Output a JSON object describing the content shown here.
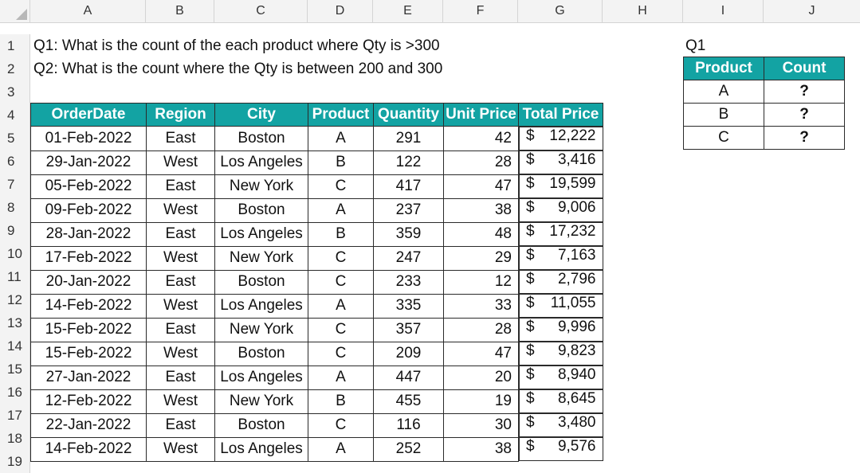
{
  "columns": [
    "A",
    "B",
    "C",
    "D",
    "E",
    "F",
    "G",
    "H",
    "I",
    "J"
  ],
  "row_numbers": [
    "1",
    "2",
    "3",
    "4",
    "5",
    "6",
    "7",
    "8",
    "9",
    "10",
    "11",
    "12",
    "13",
    "14",
    "15",
    "16",
    "17",
    "18",
    "19"
  ],
  "questions": {
    "q1": "Q1: What is the count of the each product where Qty is >300",
    "q2": "Q2: What is the count where the Qty is between 200 and 300"
  },
  "main_table": {
    "headers": [
      "OrderDate",
      "Region",
      "City",
      "Product",
      "Quantity",
      "Unit Price",
      "Total Price"
    ],
    "rows": [
      {
        "date": "01-Feb-2022",
        "region": "East",
        "city": "Boston",
        "product": "A",
        "qty": "291",
        "unit": "42",
        "cur": "$",
        "total": "12,222"
      },
      {
        "date": "29-Jan-2022",
        "region": "West",
        "city": "Los Angeles",
        "product": "B",
        "qty": "122",
        "unit": "28",
        "cur": "$",
        "total": "3,416"
      },
      {
        "date": "05-Feb-2022",
        "region": "East",
        "city": "New York",
        "product": "C",
        "qty": "417",
        "unit": "47",
        "cur": "$",
        "total": "19,599"
      },
      {
        "date": "09-Feb-2022",
        "region": "West",
        "city": "Boston",
        "product": "A",
        "qty": "237",
        "unit": "38",
        "cur": "$",
        "total": "9,006"
      },
      {
        "date": "28-Jan-2022",
        "region": "East",
        "city": "Los Angeles",
        "product": "B",
        "qty": "359",
        "unit": "48",
        "cur": "$",
        "total": "17,232"
      },
      {
        "date": "17-Feb-2022",
        "region": "West",
        "city": "New York",
        "product": "C",
        "qty": "247",
        "unit": "29",
        "cur": "$",
        "total": "7,163"
      },
      {
        "date": "20-Jan-2022",
        "region": "East",
        "city": "Boston",
        "product": "C",
        "qty": "233",
        "unit": "12",
        "cur": "$",
        "total": "2,796"
      },
      {
        "date": "14-Feb-2022",
        "region": "West",
        "city": "Los Angeles",
        "product": "A",
        "qty": "335",
        "unit": "33",
        "cur": "$",
        "total": "11,055"
      },
      {
        "date": "15-Feb-2022",
        "region": "East",
        "city": "New York",
        "product": "C",
        "qty": "357",
        "unit": "28",
        "cur": "$",
        "total": "9,996"
      },
      {
        "date": "15-Feb-2022",
        "region": "West",
        "city": "Boston",
        "product": "C",
        "qty": "209",
        "unit": "47",
        "cur": "$",
        "total": "9,823"
      },
      {
        "date": "27-Jan-2022",
        "region": "East",
        "city": "Los Angeles",
        "product": "A",
        "qty": "447",
        "unit": "20",
        "cur": "$",
        "total": "8,940"
      },
      {
        "date": "12-Feb-2022",
        "region": "West",
        "city": "New York",
        "product": "B",
        "qty": "455",
        "unit": "19",
        "cur": "$",
        "total": "8,645"
      },
      {
        "date": "22-Jan-2022",
        "region": "East",
        "city": "Boston",
        "product": "C",
        "qty": "116",
        "unit": "30",
        "cur": "$",
        "total": "3,480"
      },
      {
        "date": "14-Feb-2022",
        "region": "West",
        "city": "Los Angeles",
        "product": "A",
        "qty": "252",
        "unit": "38",
        "cur": "$",
        "total": "9,576"
      }
    ]
  },
  "side_table": {
    "label": "Q1",
    "headers": [
      "Product",
      "Count"
    ],
    "rows": [
      {
        "product": "A",
        "count": "?"
      },
      {
        "product": "B",
        "count": "?"
      },
      {
        "product": "C",
        "count": "?"
      }
    ]
  },
  "colors": {
    "header_teal": "#13a3a3",
    "grid": "#d4d4d4"
  }
}
